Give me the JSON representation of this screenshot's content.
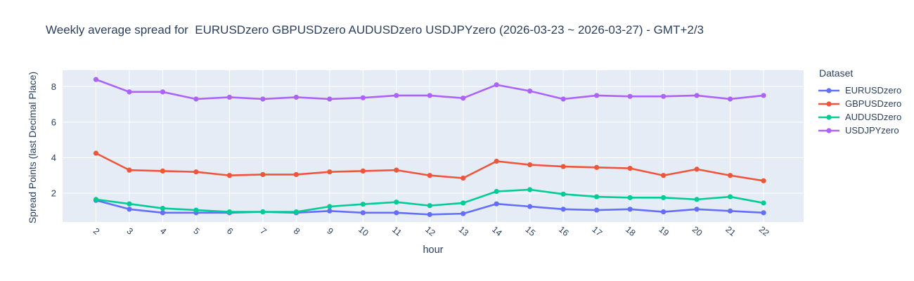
{
  "title": "Weekly average spread for  EURUSDzero GBPUSDzero AUDUSDzero USDJPYzero (2026-03-23 ~ 2026-03-27) - GMT+2/3",
  "legend": {
    "title": "Dataset"
  },
  "colors": {
    "text": "#2a3f5f",
    "plot_background": "#e5ecf6",
    "grid": "#ffffff"
  },
  "chart_data": {
    "type": "line",
    "title": "Weekly average spread for  EURUSDzero GBPUSDzero AUDUSDzero USDJPYzero (2026-03-23 ~ 2026-03-27) - GMT+2/3",
    "xlabel": "hour",
    "ylabel": "Spread Points (last Decimal Place)",
    "legend_title": "Dataset",
    "legend_position": "right",
    "grid": true,
    "x": [
      2,
      3,
      4,
      5,
      6,
      7,
      8,
      9,
      10,
      11,
      12,
      13,
      14,
      15,
      16,
      17,
      18,
      19,
      20,
      21,
      22
    ],
    "xlim": [
      1,
      23.2
    ],
    "ylim": [
      0.38,
      8.92
    ],
    "yticks": [
      2,
      4,
      6,
      8
    ],
    "xtick_angle": 40,
    "series": [
      {
        "name": "EURUSDzero",
        "color": "#636efa",
        "values": [
          1.6,
          1.1,
          0.9,
          0.9,
          0.9,
          0.95,
          0.9,
          1.0,
          0.9,
          0.9,
          0.8,
          0.85,
          1.4,
          1.25,
          1.1,
          1.05,
          1.1,
          0.95,
          1.1,
          1.0,
          0.9
        ]
      },
      {
        "name": "GBPUSDzero",
        "color": "#ef553b",
        "values": [
          4.25,
          3.3,
          3.25,
          3.2,
          3.0,
          3.05,
          3.05,
          3.2,
          3.25,
          3.3,
          3.0,
          2.85,
          3.8,
          3.6,
          3.5,
          3.45,
          3.4,
          3.0,
          3.35,
          3.0,
          2.7
        ]
      },
      {
        "name": "AUDUSDzero",
        "color": "#00cc96",
        "values": [
          1.65,
          1.4,
          1.15,
          1.05,
          0.95,
          0.95,
          0.95,
          1.25,
          1.38,
          1.5,
          1.3,
          1.45,
          2.1,
          2.2,
          1.95,
          1.8,
          1.75,
          1.75,
          1.65,
          1.8,
          1.45
        ]
      },
      {
        "name": "USDJPYzero",
        "color": "#ab63fa",
        "values": [
          8.4,
          7.7,
          7.7,
          7.3,
          7.4,
          7.3,
          7.4,
          7.3,
          7.37,
          7.5,
          7.5,
          7.35,
          8.1,
          7.75,
          7.3,
          7.5,
          7.45,
          7.45,
          7.5,
          7.3,
          7.5
        ]
      }
    ]
  }
}
